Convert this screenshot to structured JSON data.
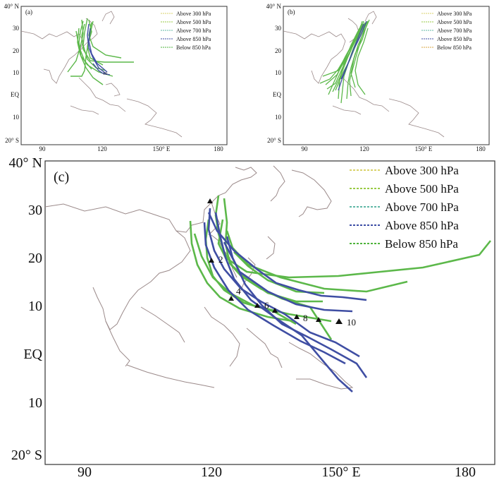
{
  "panels": [
    {
      "id": "a",
      "label": "(a)",
      "lat_labels": [
        "40° N",
        "30",
        "20",
        "10",
        "EQ",
        "10",
        "20° S"
      ],
      "lon_labels": [
        "90",
        "120",
        "150° E",
        "180"
      ],
      "legend": [
        {
          "text": "Above 300 hPa",
          "color": "#d9d26a"
        },
        {
          "text": "Above 500 hPa",
          "color": "#9acb45"
        },
        {
          "text": "Above 700 hPa",
          "color": "#5fb7a6"
        },
        {
          "text": "Above 850 hPa",
          "color": "#3d4ea6"
        },
        {
          "text": "Below 850 hPa",
          "color": "#4fb33c"
        }
      ]
    },
    {
      "id": "b",
      "label": "(b)",
      "lat_labels": [
        "40° N",
        "30",
        "20",
        "10",
        "EQ",
        "10",
        "20° S"
      ],
      "lon_labels": [
        "90",
        "120",
        "150° E",
        "180"
      ],
      "legend": [
        {
          "text": "Above 300 hPa",
          "color": "#d9d26a"
        },
        {
          "text": "Above 500 hPa",
          "color": "#9acb45"
        },
        {
          "text": "Above 700 hPa",
          "color": "#5fb7a6"
        },
        {
          "text": "Above 850 hPa",
          "color": "#3d4ea6"
        },
        {
          "text": "Below 850 hPa",
          "color": "#d9a441"
        }
      ]
    },
    {
      "id": "c",
      "label": "(c)",
      "lat_labels": [
        "40° N",
        "30",
        "20",
        "10",
        "EQ",
        "10",
        "20° S"
      ],
      "lon_labels": [
        "90",
        "120",
        "150° E",
        "180"
      ],
      "legend": [
        {
          "text": "Above  300  hPa",
          "color": "#d9d26a"
        },
        {
          "text": "Above  500  hPa",
          "color": "#9acb45"
        },
        {
          "text": "Above  700  hPa",
          "color": "#5fb7a6"
        },
        {
          "text": "Above  850  hPa",
          "color": "#3d4ea6"
        },
        {
          "text": "Below  850  hPa",
          "color": "#4fb33c"
        }
      ],
      "day_markers": [
        "2",
        "4",
        "6",
        "8",
        "10"
      ]
    }
  ],
  "colors": {
    "green_track": "#5cb84a",
    "blue_track": "#3f4ea3",
    "coast": "#9b8a8a"
  }
}
